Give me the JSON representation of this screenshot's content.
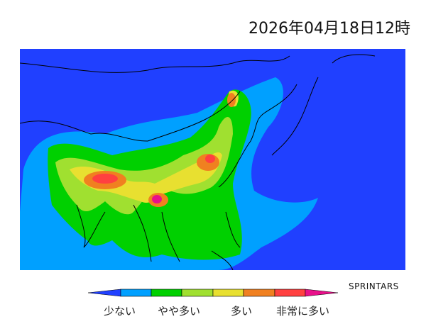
{
  "title": "2026年04月18日12時",
  "credit": "SPRINTARS",
  "legend": {
    "labels": [
      "少ない",
      "やや多い",
      "多い",
      "非常に多い"
    ],
    "colors": [
      "#2040ff",
      "#00a0ff",
      "#00d000",
      "#a0e030",
      "#e8e030",
      "#f08020",
      "#ff4040",
      "#e8108a"
    ]
  },
  "map": {
    "background_color": "#2040ff",
    "border_color": "#000000"
  }
}
